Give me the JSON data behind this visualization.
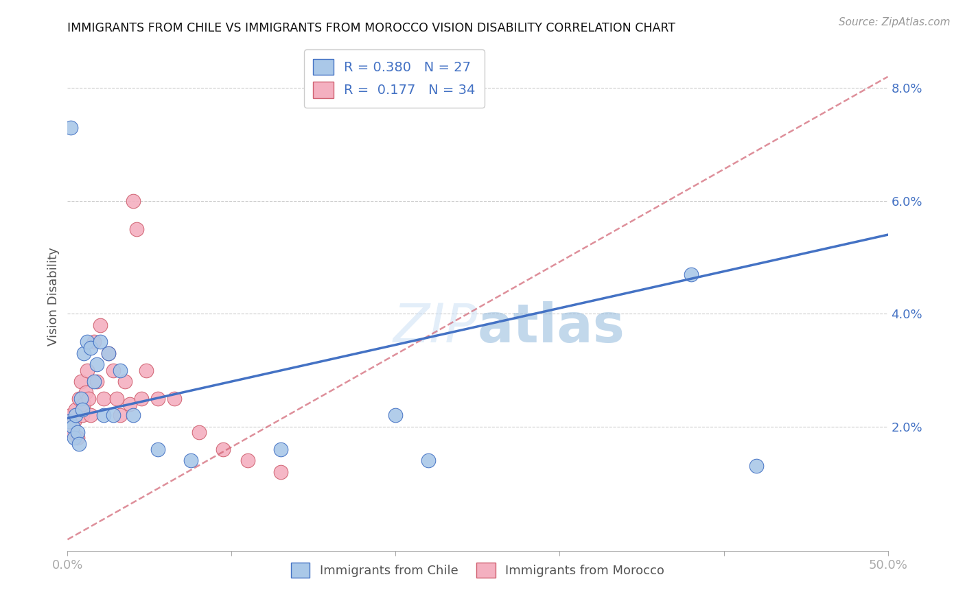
{
  "title": "IMMIGRANTS FROM CHILE VS IMMIGRANTS FROM MOROCCO VISION DISABILITY CORRELATION CHART",
  "source": "Source: ZipAtlas.com",
  "ylabel": "Vision Disability",
  "xlim": [
    0.0,
    0.5
  ],
  "ylim": [
    -0.002,
    0.088
  ],
  "yticks": [
    0.0,
    0.02,
    0.04,
    0.06,
    0.08
  ],
  "ytick_labels": [
    "",
    "2.0%",
    "4.0%",
    "6.0%",
    "8.0%"
  ],
  "chile_R": 0.38,
  "chile_N": 27,
  "morocco_R": 0.177,
  "morocco_N": 34,
  "chile_color": "#aac8e8",
  "chile_line_color": "#4472c4",
  "morocco_color": "#f4b0c0",
  "morocco_line_color": "#d06070",
  "chile_x": [
    0.001,
    0.002,
    0.003,
    0.004,
    0.005,
    0.006,
    0.007,
    0.008,
    0.009,
    0.01,
    0.012,
    0.014,
    0.016,
    0.018,
    0.02,
    0.022,
    0.025,
    0.028,
    0.032,
    0.04,
    0.055,
    0.075,
    0.13,
    0.2,
    0.22,
    0.38,
    0.42
  ],
  "chile_y": [
    0.021,
    0.073,
    0.02,
    0.018,
    0.022,
    0.019,
    0.017,
    0.025,
    0.023,
    0.033,
    0.035,
    0.034,
    0.028,
    0.031,
    0.035,
    0.022,
    0.033,
    0.022,
    0.03,
    0.022,
    0.016,
    0.014,
    0.016,
    0.022,
    0.014,
    0.047,
    0.013
  ],
  "morocco_x": [
    0.001,
    0.002,
    0.003,
    0.004,
    0.005,
    0.006,
    0.007,
    0.008,
    0.009,
    0.01,
    0.011,
    0.012,
    0.013,
    0.014,
    0.016,
    0.018,
    0.02,
    0.022,
    0.025,
    0.028,
    0.03,
    0.032,
    0.035,
    0.038,
    0.04,
    0.042,
    0.045,
    0.048,
    0.055,
    0.065,
    0.08,
    0.095,
    0.11,
    0.13
  ],
  "morocco_y": [
    0.02,
    0.022,
    0.019,
    0.021,
    0.023,
    0.018,
    0.025,
    0.028,
    0.022,
    0.024,
    0.026,
    0.03,
    0.025,
    0.022,
    0.035,
    0.028,
    0.038,
    0.025,
    0.033,
    0.03,
    0.025,
    0.022,
    0.028,
    0.024,
    0.06,
    0.055,
    0.025,
    0.03,
    0.025,
    0.025,
    0.019,
    0.016,
    0.014,
    0.012
  ],
  "chile_line_x0": 0.0,
  "chile_line_y0": 0.0215,
  "chile_line_x1": 0.5,
  "chile_line_y1": 0.054,
  "morocco_line_x0": 0.0,
  "morocco_line_y0": 0.0,
  "morocco_line_x1": 0.5,
  "morocco_line_y1": 0.082
}
